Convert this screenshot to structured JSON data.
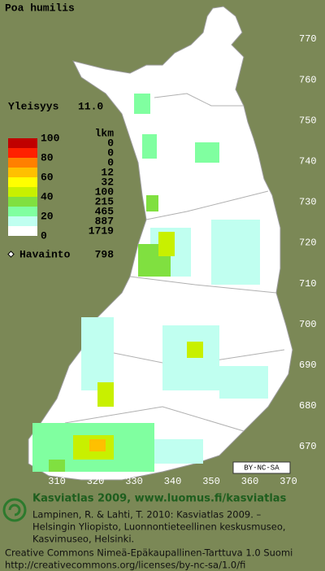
{
  "title": "Poa humilis",
  "frequency": {
    "label": "Yleisyys",
    "value": "11.0"
  },
  "legend": {
    "scale_labels": [
      100,
      80,
      60,
      40,
      20,
      0
    ],
    "count_header": "lkm",
    "counts": [
      0,
      0,
      0,
      12,
      32,
      100,
      215,
      465,
      887,
      1719
    ],
    "colors": [
      "#c00000",
      "#ff2000",
      "#ff8000",
      "#ffc000",
      "#ffff00",
      "#c8f000",
      "#80e040",
      "#80ffa0",
      "#c0fff0",
      "#ffffff"
    ]
  },
  "observations": {
    "label": "Havainto",
    "value": 798
  },
  "grid": {
    "y_labels": [
      770,
      760,
      750,
      740,
      730,
      720,
      710,
      700,
      690,
      680,
      670
    ],
    "x_labels": [
      310,
      320,
      330,
      340,
      350,
      360,
      370
    ]
  },
  "license_badge": "BY-NC-SA",
  "footer": {
    "heading": "Kasviatlas 2009, www.luomus.fi/kasviatlas",
    "citation": [
      "Lampinen, R. & Lahti, T. 2010: Kasviatlas 2009. –",
      "Helsingin Yliopisto, Luonnontieteellinen keskusmuseo,",
      "Kasvimuseo, Helsinki."
    ],
    "license": [
      "Creative Commons Nimeä-Epäkaupallinen-Tarttuva 1.0 Suomi",
      "http://creativecommons.org/licenses/by-nc-sa/1.0/fi"
    ]
  }
}
